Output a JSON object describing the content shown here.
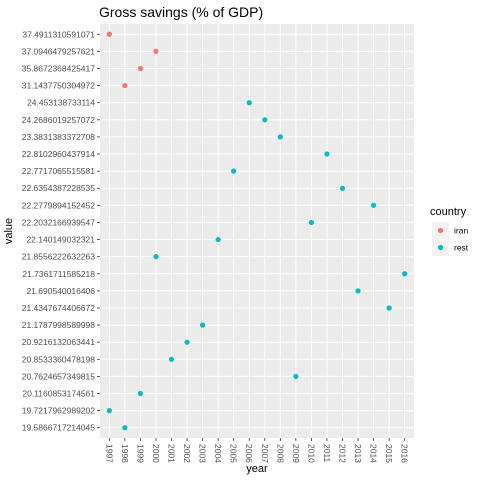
{
  "chart_data": {
    "type": "scatter",
    "title": "Gross savings (% of GDP)",
    "xlabel": "year",
    "ylabel": "value",
    "x_ticks": [
      "1997",
      "1998",
      "1999",
      "2000",
      "2001",
      "2002",
      "2003",
      "2004",
      "2005",
      "2006",
      "2007",
      "2008",
      "2009",
      "2010",
      "2011",
      "2012",
      "2013",
      "2014",
      "2015",
      "2016"
    ],
    "y_ticks": [
      "37.4911310591071",
      "37.0946479257621",
      "35.8672368425417",
      "31.1437750304972",
      "24.453138733114",
      "24.2686019257072",
      "23.3831383372708",
      "22.8102960437914",
      "22.7717065515581",
      "22.6354387228535",
      "22.2779894152452",
      "22.2032166939547",
      "22.140149032321",
      "21.8556222632263",
      "21.7361711585218",
      "21.690540016406",
      "21.4347674406672",
      "21.1787998589998",
      "20.9216132063441",
      "20.8533360478198",
      "20.7624657349815",
      "20.1160853174561",
      "19.7217962989202",
      "19.5866717214045"
    ],
    "grid": true,
    "legend": {
      "title": "country",
      "position": "right",
      "entries": [
        {
          "name": "iran",
          "color": "#F8766D"
        },
        {
          "name": "rest",
          "color": "#00BFC4"
        }
      ]
    },
    "series": [
      {
        "name": "iran",
        "color": "#F8766D",
        "points": [
          {
            "x": "1997",
            "y": "37.4911310591071"
          },
          {
            "x": "1998",
            "y": "31.1437750304972"
          },
          {
            "x": "1999",
            "y": "35.8672368425417"
          },
          {
            "x": "2000",
            "y": "37.0946479257621"
          }
        ]
      },
      {
        "name": "rest",
        "color": "#00BFC4",
        "points": [
          {
            "x": "1997",
            "y": "19.7217962989202"
          },
          {
            "x": "1998",
            "y": "19.5866717214045"
          },
          {
            "x": "1999",
            "y": "20.1160853174561"
          },
          {
            "x": "2000",
            "y": "21.8556222632263"
          },
          {
            "x": "2001",
            "y": "20.8533360478198"
          },
          {
            "x": "2002",
            "y": "20.9216132063441"
          },
          {
            "x": "2003",
            "y": "21.1787998589998"
          },
          {
            "x": "2004",
            "y": "22.140149032321"
          },
          {
            "x": "2005",
            "y": "22.7717065515581"
          },
          {
            "x": "2006",
            "y": "24.453138733114"
          },
          {
            "x": "2007",
            "y": "24.2686019257072"
          },
          {
            "x": "2008",
            "y": "23.3831383372708"
          },
          {
            "x": "2009",
            "y": "20.7624657349815"
          },
          {
            "x": "2010",
            "y": "22.2032166939547"
          },
          {
            "x": "2011",
            "y": "22.8102960437914"
          },
          {
            "x": "2012",
            "y": "22.6354387228535"
          },
          {
            "x": "2013",
            "y": "21.690540016406"
          },
          {
            "x": "2014",
            "y": "22.2779894152452"
          },
          {
            "x": "2015",
            "y": "21.4347674406672"
          },
          {
            "x": "2016",
            "y": "21.7361711585218"
          }
        ]
      }
    ]
  }
}
